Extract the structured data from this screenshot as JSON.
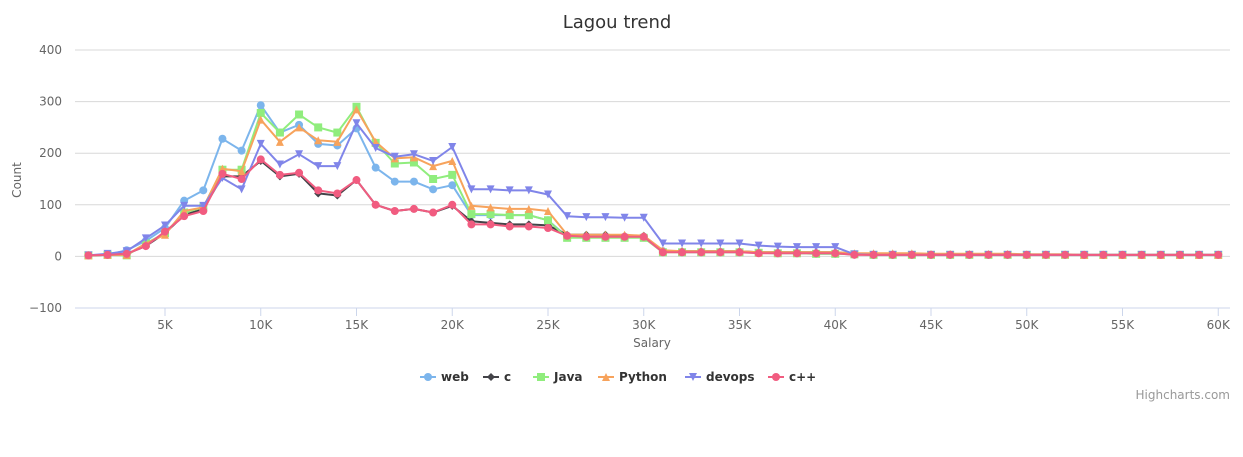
{
  "chart_data": {
    "type": "line",
    "title": "Lagou trend",
    "xlabel": "Salary",
    "ylabel": "Count",
    "xlim": [
      0,
      60
    ],
    "ylim": [
      -100,
      400
    ],
    "x_ticks": [
      5,
      10,
      15,
      20,
      25,
      30,
      35,
      40,
      45,
      50,
      55,
      60
    ],
    "x_tick_labels": [
      "5K",
      "10K",
      "15K",
      "20K",
      "25K",
      "30K",
      "35K",
      "40K",
      "45K",
      "50K",
      "55K",
      "60K"
    ],
    "y_ticks": [
      -100,
      0,
      100,
      200,
      300,
      400
    ],
    "y_tick_labels": [
      "−100",
      "0",
      "100",
      "200",
      "300",
      "400"
    ],
    "legend_position": "bottom-center",
    "grid": true,
    "series": [
      {
        "name": "web",
        "color": "#7cb5ec",
        "marker": "circle",
        "x": [
          1,
          2,
          3,
          4,
          5,
          6,
          7,
          8,
          9,
          10,
          11,
          12,
          13,
          14,
          15,
          16,
          17,
          18,
          19,
          20,
          21,
          22,
          23,
          24,
          25,
          26,
          27,
          28,
          29,
          30,
          31,
          32,
          33,
          34,
          35,
          36,
          37,
          38,
          39,
          40,
          41,
          42,
          43,
          44,
          45,
          46,
          47,
          48,
          49,
          50,
          51,
          52,
          53,
          54,
          55,
          56,
          57,
          58,
          59,
          60
        ],
        "values": [
          2,
          3,
          12,
          30,
          55,
          108,
          128,
          228,
          205,
          293,
          240,
          255,
          218,
          215,
          248,
          172,
          145,
          145,
          130,
          138,
          80,
          80,
          80,
          80,
          70,
          38,
          38,
          38,
          38,
          38,
          10,
          8,
          8,
          8,
          8,
          7,
          6,
          6,
          5,
          5,
          4,
          3,
          3,
          3,
          3,
          3,
          3,
          3,
          3,
          3,
          3,
          3,
          3,
          3,
          3,
          3,
          3,
          3,
          3,
          3
        ]
      },
      {
        "name": "c",
        "color": "#434348",
        "marker": "diamond",
        "x": [
          1,
          2,
          3,
          4,
          5,
          6,
          7,
          8,
          9,
          10,
          11,
          12,
          13,
          14,
          15,
          16,
          17,
          18,
          19,
          20,
          21,
          22,
          23,
          24,
          25,
          26,
          27,
          28,
          29,
          30,
          31,
          32,
          33,
          34,
          35,
          36,
          37,
          38,
          39,
          40,
          41,
          42,
          43,
          44,
          45,
          46,
          47,
          48,
          49,
          50,
          51,
          52,
          53,
          54,
          55,
          56,
          57,
          58,
          59,
          60
        ],
        "values": [
          2,
          3,
          5,
          20,
          45,
          80,
          92,
          155,
          155,
          185,
          155,
          160,
          122,
          118,
          148,
          100,
          88,
          92,
          85,
          98,
          68,
          65,
          62,
          62,
          60,
          42,
          42,
          42,
          40,
          40,
          10,
          10,
          10,
          10,
          10,
          8,
          8,
          8,
          8,
          8,
          5,
          4,
          4,
          4,
          3,
          3,
          3,
          3,
          3,
          3,
          3,
          3,
          3,
          3,
          3,
          3,
          3,
          3,
          3,
          3
        ]
      },
      {
        "name": "Java",
        "color": "#90ed7d",
        "marker": "square",
        "x": [
          1,
          2,
          3,
          4,
          5,
          6,
          7,
          8,
          9,
          10,
          11,
          12,
          13,
          14,
          15,
          16,
          17,
          18,
          19,
          20,
          21,
          22,
          23,
          24,
          25,
          26,
          27,
          28,
          29,
          30,
          31,
          32,
          33,
          34,
          35,
          36,
          37,
          38,
          39,
          40,
          41,
          42,
          43,
          44,
          45,
          46,
          47,
          48,
          49,
          50,
          51,
          52,
          53,
          54,
          55,
          56,
          57,
          58,
          59,
          60
        ],
        "values": [
          2,
          3,
          2,
          25,
          45,
          85,
          95,
          168,
          168,
          278,
          240,
          275,
          250,
          240,
          290,
          220,
          180,
          182,
          150,
          158,
          82,
          82,
          80,
          80,
          70,
          36,
          36,
          36,
          36,
          36,
          8,
          8,
          8,
          8,
          8,
          7,
          6,
          6,
          5,
          5,
          4,
          3,
          3,
          3,
          3,
          3,
          3,
          3,
          3,
          3,
          3,
          3,
          3,
          3,
          3,
          3,
          3,
          3,
          3,
          3
        ]
      },
      {
        "name": "Python",
        "color": "#f7a35c",
        "marker": "triangle",
        "x": [
          1,
          2,
          3,
          4,
          5,
          6,
          7,
          8,
          9,
          10,
          11,
          12,
          13,
          14,
          15,
          16,
          17,
          18,
          19,
          20,
          21,
          22,
          23,
          24,
          25,
          26,
          27,
          28,
          29,
          30,
          31,
          32,
          33,
          34,
          35,
          36,
          37,
          38,
          39,
          40,
          41,
          42,
          43,
          44,
          45,
          46,
          47,
          48,
          49,
          50,
          51,
          52,
          53,
          54,
          55,
          56,
          57,
          58,
          59,
          60
        ],
        "values": [
          2,
          3,
          3,
          25,
          42,
          88,
          95,
          170,
          165,
          265,
          222,
          250,
          225,
          222,
          285,
          222,
          190,
          192,
          175,
          185,
          98,
          95,
          92,
          92,
          88,
          42,
          42,
          42,
          42,
          40,
          12,
          10,
          10,
          10,
          10,
          8,
          8,
          8,
          8,
          8,
          6,
          6,
          6,
          6,
          5,
          5,
          5,
          5,
          5,
          4,
          4,
          4,
          3,
          3,
          3,
          3,
          3,
          3,
          3,
          3
        ]
      },
      {
        "name": "devops",
        "color": "#8085e9",
        "marker": "triangle-down",
        "x": [
          1,
          2,
          3,
          4,
          5,
          6,
          7,
          8,
          9,
          10,
          11,
          12,
          13,
          14,
          15,
          16,
          17,
          18,
          19,
          20,
          21,
          22,
          23,
          24,
          25,
          26,
          27,
          28,
          29,
          30,
          31,
          32,
          33,
          34,
          35,
          36,
          37,
          38,
          39,
          40,
          41,
          42,
          43,
          44,
          45,
          46,
          47,
          48,
          49,
          50,
          51,
          52,
          53,
          54,
          55,
          56,
          57,
          58,
          59,
          60
        ],
        "values": [
          2,
          5,
          10,
          35,
          60,
          98,
          98,
          152,
          130,
          218,
          178,
          198,
          175,
          175,
          258,
          210,
          193,
          198,
          185,
          212,
          130,
          130,
          128,
          128,
          120,
          78,
          76,
          76,
          75,
          75,
          25,
          25,
          25,
          25,
          25,
          21,
          19,
          18,
          18,
          18,
          4,
          3,
          3,
          3,
          3,
          3,
          3,
          3,
          3,
          3,
          3,
          3,
          3,
          3,
          3,
          3,
          3,
          3,
          3,
          3
        ]
      },
      {
        "name": "c++",
        "color": "#f15c80",
        "marker": "circle",
        "x": [
          1,
          2,
          3,
          4,
          5,
          6,
          7,
          8,
          9,
          10,
          11,
          12,
          13,
          14,
          15,
          16,
          17,
          18,
          19,
          20,
          21,
          22,
          23,
          24,
          25,
          26,
          27,
          28,
          29,
          30,
          31,
          32,
          33,
          34,
          35,
          36,
          37,
          38,
          39,
          40,
          41,
          42,
          43,
          44,
          45,
          46,
          47,
          48,
          49,
          50,
          51,
          52,
          53,
          54,
          55,
          56,
          57,
          58,
          59,
          60
        ],
        "values": [
          2,
          3,
          5,
          20,
          48,
          78,
          88,
          160,
          150,
          188,
          158,
          162,
          128,
          122,
          148,
          100,
          88,
          92,
          85,
          100,
          62,
          62,
          58,
          58,
          55,
          40,
          38,
          38,
          38,
          38,
          8,
          8,
          8,
          8,
          8,
          6,
          6,
          6,
          6,
          6,
          3,
          3,
          3,
          3,
          3,
          3,
          3,
          3,
          3,
          3,
          3,
          3,
          3,
          3,
          3,
          3,
          3,
          3,
          3,
          3
        ]
      }
    ]
  },
  "credits": "Highcharts.com"
}
